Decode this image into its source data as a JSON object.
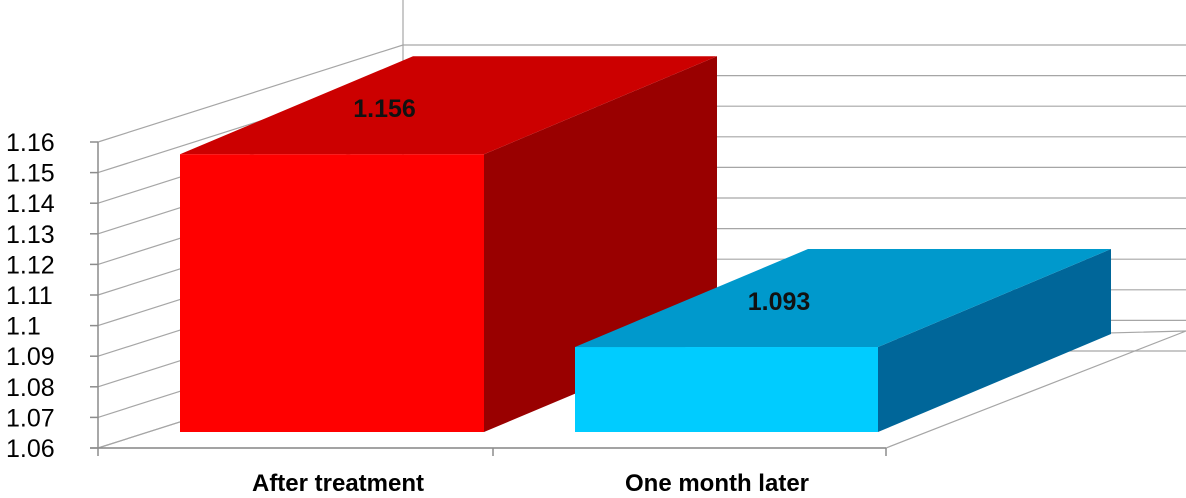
{
  "chart_data": {
    "type": "bar",
    "categories": [
      "After treatment",
      "One month later"
    ],
    "values": [
      1.156,
      1.093
    ],
    "data_labels": [
      "1.156",
      "1.093"
    ],
    "ylim": [
      1.06,
      1.16
    ],
    "y_ticks": [
      "1.06",
      "1.07",
      "1.08",
      "1.09",
      "1.1",
      "1.11",
      "1.12",
      "1.13",
      "1.14",
      "1.15",
      "1.16"
    ],
    "title": "",
    "xlabel": "",
    "ylabel": "",
    "grid": true,
    "style": "3d-column",
    "colors": {
      "bars": [
        {
          "front": "#ff0000",
          "top": "#cc0000",
          "side": "#990000"
        },
        {
          "front": "#00ccff",
          "top": "#0099cc",
          "side": "#006699"
        }
      ],
      "grid": "#a6a6a6",
      "axis": "#8c8c8c"
    }
  }
}
